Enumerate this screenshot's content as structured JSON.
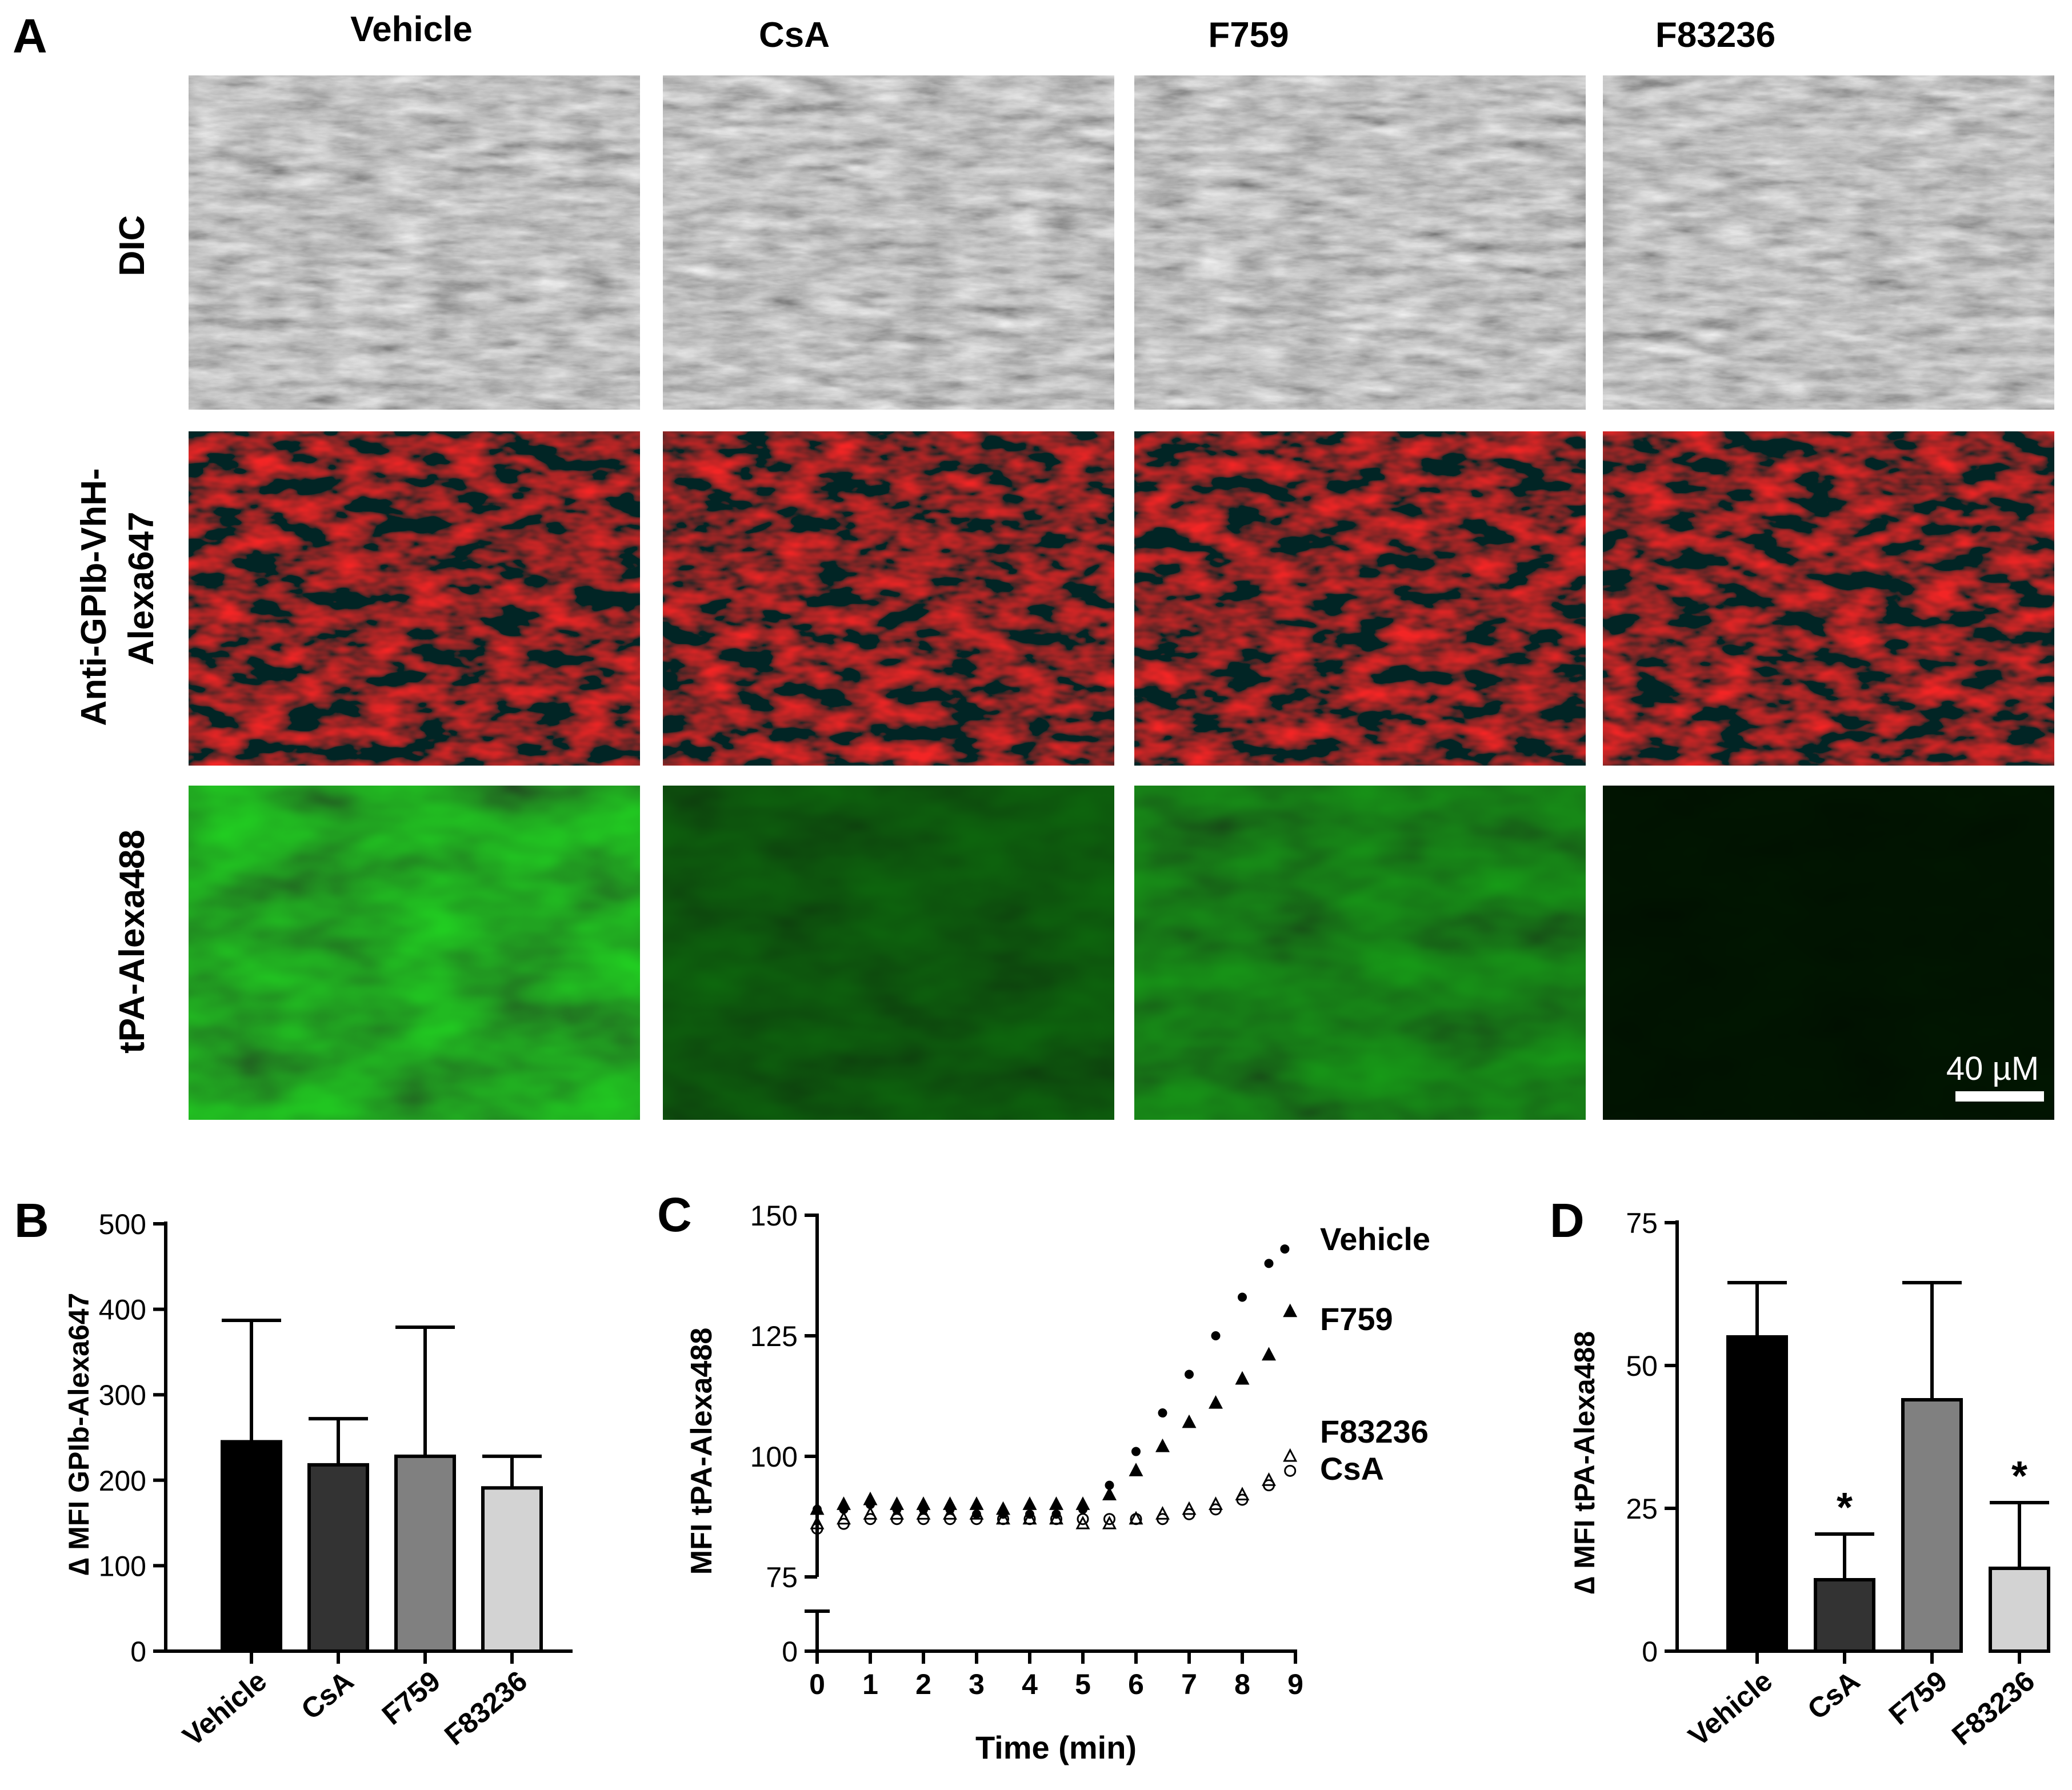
{
  "panelA": {
    "label": "A",
    "columns": [
      "Vehicle",
      "CsA",
      "F759",
      "F83236"
    ],
    "rows": [
      "DIC",
      "Anti-GPIb-VhH-",
      "Alexa647",
      "tPA-Alexa488"
    ],
    "scalebar": "40 µM",
    "colors": {
      "dic": "#8a8a8a",
      "red": "#ff1a1a",
      "green": "#2aa02a"
    }
  },
  "chart_data": [
    {
      "panel": "B",
      "type": "bar",
      "categories": [
        "Vehicle",
        "CsA",
        "F759",
        "F83236"
      ],
      "values": [
        245,
        218,
        228,
        191
      ],
      "errors": [
        142,
        54,
        151,
        37
      ],
      "colors": [
        "#000000",
        "#333333",
        "#808080",
        "#d3d3d3"
      ],
      "ylabel": "∆ MFI GPIb-Alexa647",
      "ylim": [
        0,
        500
      ],
      "yticks": [
        0,
        100,
        200,
        300,
        400,
        500
      ]
    },
    {
      "panel": "C",
      "type": "scatter",
      "xlabel": "Time (min)",
      "ylabel": "MFI  tPA-Alexa488",
      "xticks": [
        0,
        1,
        2,
        3,
        4,
        5,
        6,
        7,
        8,
        9
      ],
      "yticks": [
        0,
        75,
        100,
        125,
        150
      ],
      "ylim": [
        75,
        150
      ],
      "axis_break": true,
      "series": [
        {
          "name": "Vehicle",
          "marker": "filled-circle",
          "x": [
            0,
            0.5,
            1,
            1.5,
            2,
            2.5,
            3,
            3.5,
            4,
            4.5,
            5,
            5.5,
            6,
            6.5,
            7,
            7.5,
            8,
            8.5,
            8.8
          ],
          "y": [
            89,
            89,
            90,
            89,
            89,
            89,
            88,
            88,
            88,
            88,
            89,
            94,
            101,
            109,
            117,
            125,
            133,
            140,
            143
          ]
        },
        {
          "name": "F759",
          "marker": "filled-triangle",
          "x": [
            0,
            0.5,
            1,
            1.5,
            2,
            2.5,
            3,
            3.5,
            4,
            4.5,
            5,
            5.5,
            6,
            6.5,
            7,
            7.5,
            8,
            8.5,
            8.9
          ],
          "y": [
            89,
            90,
            91,
            90,
            90,
            90,
            90,
            89,
            90,
            90,
            90,
            92,
            97,
            102,
            107,
            111,
            116,
            121,
            130
          ]
        },
        {
          "name": "F83236",
          "marker": "open-triangle",
          "x": [
            0,
            0.5,
            1,
            1.5,
            2,
            2.5,
            3,
            3.5,
            4,
            4.5,
            5,
            5.5,
            6,
            6.5,
            7,
            7.5,
            8,
            8.5,
            8.9
          ],
          "y": [
            86,
            87,
            88,
            88,
            88,
            88,
            88,
            87,
            87,
            87,
            86,
            86,
            87,
            88,
            89,
            90,
            92,
            95,
            100
          ]
        },
        {
          "name": "CsA",
          "marker": "open-circle",
          "x": [
            0,
            0.5,
            1,
            1.5,
            2,
            2.5,
            3,
            3.5,
            4,
            4.5,
            5,
            5.5,
            6,
            6.5,
            7,
            7.5,
            8,
            8.5,
            8.9
          ],
          "y": [
            85,
            86,
            87,
            87,
            87,
            87,
            87,
            87,
            87,
            87,
            87,
            87,
            87,
            87,
            88,
            89,
            91,
            94,
            97
          ]
        }
      ]
    },
    {
      "panel": "D",
      "type": "bar",
      "categories": [
        "Vehicle",
        "CsA",
        "F759",
        "F83236"
      ],
      "values": [
        55,
        12.5,
        44,
        14.5
      ],
      "errors": [
        9.5,
        8,
        20.5,
        11.5
      ],
      "colors": [
        "#000000",
        "#333333",
        "#808080",
        "#d3d3d3"
      ],
      "significance": [
        "",
        "*",
        "",
        "*"
      ],
      "ylabel": "∆ MFI tPA-Alexa488",
      "ylim": [
        0,
        75
      ],
      "yticks": [
        0,
        25,
        50,
        75
      ]
    }
  ],
  "panel_labels": {
    "B": "B",
    "C": "C",
    "D": "D"
  }
}
